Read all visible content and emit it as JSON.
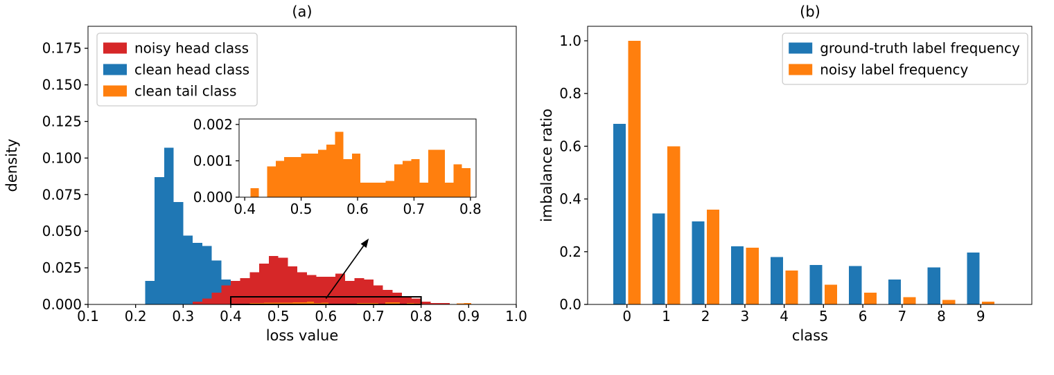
{
  "figure": {
    "background": "#ffffff",
    "axis_color": "#000000",
    "legend_border_color": "#cccccc",
    "colors": {
      "blue": "#1f77b4",
      "orange": "#ff7f0e",
      "red": "#d62728"
    }
  },
  "chart_data": [
    {
      "id": "a",
      "type": "bar",
      "subtype": "histogram",
      "title": "(a)",
      "xlabel": "loss value",
      "ylabel": "density",
      "xlim": [
        0.1,
        1.0
      ],
      "ylim": [
        0,
        0.19
      ],
      "xtick_values": [
        0.1,
        0.2,
        0.3,
        0.4,
        0.5,
        0.6,
        0.7,
        0.8,
        0.9,
        1.0
      ],
      "xtick_labels": [
        "0.1",
        "0.2",
        "0.3",
        "0.4",
        "0.5",
        "0.6",
        "0.7",
        "0.8",
        "0.9",
        "1.0"
      ],
      "ytick_values": [
        0,
        0.025,
        0.05,
        0.075,
        0.1,
        0.125,
        0.15,
        0.175
      ],
      "ytick_labels": [
        "0.000",
        "0.025",
        "0.050",
        "0.075",
        "0.100",
        "0.125",
        "0.150",
        "0.175"
      ],
      "legend": [
        {
          "label": "noisy head class",
          "color": "#d62728"
        },
        {
          "label": "clean head class",
          "color": "#1f77b4"
        },
        {
          "label": "clean tail class",
          "color": "#ff7f0e"
        }
      ],
      "draw_order": [
        "clean head class",
        "noisy head class",
        "clean tail class"
      ],
      "series": [
        {
          "name": "clean head class",
          "color": "#1f77b4",
          "bin_start": 0.22,
          "bin_width": 0.02,
          "values": [
            0.016,
            0.087,
            0.107,
            0.07,
            0.047,
            0.042,
            0.04,
            0.03,
            0.017,
            0.016,
            0.015
          ]
        },
        {
          "name": "noisy head class",
          "color": "#d62728",
          "bin_start": 0.32,
          "bin_width": 0.02,
          "values": [
            0.002,
            0.004,
            0.008,
            0.013,
            0.016,
            0.018,
            0.022,
            0.028,
            0.033,
            0.032,
            0.026,
            0.022,
            0.02,
            0.019,
            0.019,
            0.021,
            0.016,
            0.018,
            0.017,
            0.013,
            0.01,
            0.008,
            0.005,
            0.004,
            0.002,
            0.001,
            0.001
          ]
        },
        {
          "name": "clean tail class",
          "color": "#ff7f0e",
          "bin_start": 0.41,
          "bin_width": 0.015,
          "values": [
            0.00025,
            0,
            0.00085,
            0.001,
            0.0011,
            0.0011,
            0.0012,
            0.0012,
            0.0013,
            0.00145,
            0.0018,
            0.00105,
            0.0012,
            0.0004,
            0.0004,
            0.0004,
            0.00045,
            0.0009,
            0.001,
            0.00105,
            0.0004,
            0.0013,
            0.0013,
            0.0004,
            0.0009,
            0.0008,
            0,
            0,
            0,
            0,
            0,
            0.0008,
            0.0009
          ]
        }
      ],
      "zoom_rect": {
        "x0": 0.4,
        "x1": 0.8,
        "y0": 0,
        "y1": 0.0052
      },
      "arrow": {
        "x0": 0.6,
        "y0": 0.004,
        "x1": 0.69,
        "y1": 0.045
      },
      "inset": {
        "series": "clean tail class",
        "xlim": [
          0.39,
          0.81
        ],
        "ylim": [
          0,
          0.00215
        ],
        "xtick_values": [
          0.4,
          0.5,
          0.6,
          0.7,
          0.8
        ],
        "xtick_labels": [
          "0.4",
          "0.5",
          "0.6",
          "0.7",
          "0.8"
        ],
        "ytick_values": [
          0,
          0.001,
          0.002
        ],
        "ytick_labels": [
          "0.000",
          "0.001",
          "0.002"
        ]
      }
    },
    {
      "id": "b",
      "type": "bar",
      "title": "(b)",
      "xlabel": "class",
      "ylabel": "imbalance ratio",
      "categories": [
        "0",
        "1",
        "2",
        "3",
        "4",
        "5",
        "6",
        "7",
        "8",
        "9"
      ],
      "xlim": [
        -1.0,
        10.3
      ],
      "ylim": [
        0,
        1.055
      ],
      "ytick_values": [
        0,
        0.2,
        0.4,
        0.6,
        0.8,
        1.0
      ],
      "ytick_labels": [
        "0.0",
        "0.2",
        "0.4",
        "0.6",
        "0.8",
        "1.0"
      ],
      "legend": [
        {
          "label": "ground-truth label frequency",
          "color": "#1f77b4"
        },
        {
          "label": "noisy label frequency",
          "color": "#ff7f0e"
        }
      ],
      "series": [
        {
          "name": "ground-truth label frequency",
          "color": "#1f77b4",
          "values": [
            0.685,
            0.345,
            0.315,
            0.22,
            0.18,
            0.15,
            0.145,
            0.095,
            0.14,
            0.197
          ]
        },
        {
          "name": "noisy label frequency",
          "color": "#ff7f0e",
          "values": [
            1.0,
            0.6,
            0.36,
            0.215,
            0.128,
            0.075,
            0.045,
            0.027,
            0.017,
            0.01
          ]
        }
      ]
    }
  ]
}
